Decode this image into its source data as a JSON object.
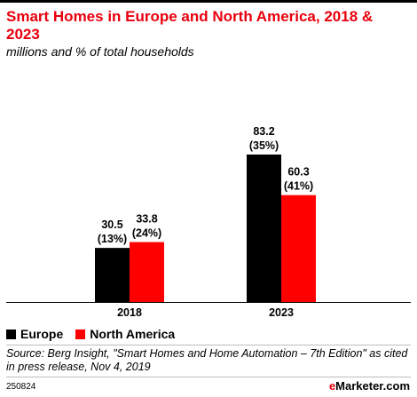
{
  "header": {
    "title": "Smart Homes in Europe and North America, 2018 & 2023",
    "subtitle": "millions and % of total households"
  },
  "colors": {
    "europe": "#000000",
    "north_america": "#ff0000",
    "title": "#e8000d"
  },
  "chart_data": {
    "type": "bar",
    "title": "Smart Homes in Europe and North America, 2018 & 2023",
    "subtitle": "millions and % of total households",
    "categories": [
      "2018",
      "2023"
    ],
    "series": [
      {
        "name": "Europe",
        "values": [
          30.5,
          83.2
        ],
        "labels": [
          "30.5",
          "83.2"
        ],
        "shares": [
          "(13%)",
          "(35%)"
        ],
        "color": "#000000"
      },
      {
        "name": "North America",
        "values": [
          33.8,
          60.3
        ],
        "labels": [
          "33.8",
          "60.3"
        ],
        "shares": [
          "(24%)",
          "(41%)"
        ],
        "color": "#ff0000"
      }
    ],
    "xlabel": "",
    "ylabel": "",
    "ylim": [
      0,
      100
    ],
    "grid": false,
    "legend_position": "bottom-left"
  },
  "legend": [
    {
      "label": "Europe",
      "color": "#000000"
    },
    {
      "label": "North America",
      "color": "#ff0000"
    }
  ],
  "footer": {
    "source": "Source: Berg Insight, \"Smart Homes and Home Automation – 7th Edition\" as cited in press release, Nov 4, 2019",
    "chart_id": "250824",
    "brand_prefix": "e",
    "brand_name": "Marketer",
    "brand_suffix": ".com"
  }
}
